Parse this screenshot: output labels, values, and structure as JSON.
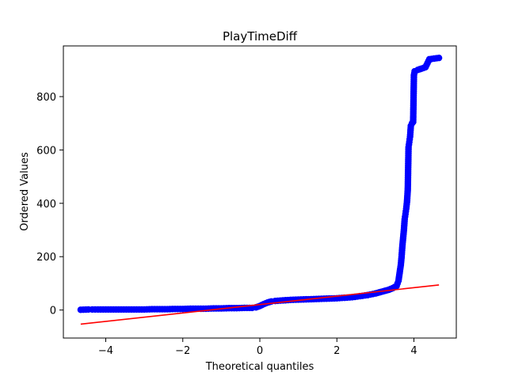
{
  "chart_data": {
    "type": "scatter",
    "title": "PlayTimeDiff",
    "xlabel": "Theoretical quantiles",
    "ylabel": "Ordered Values",
    "xlim": [
      -5.1,
      5.1
    ],
    "ylim": [
      -105,
      990
    ],
    "xticks": [
      -4,
      -2,
      0,
      2,
      4
    ],
    "yticks": [
      0,
      200,
      400,
      600,
      800
    ],
    "grid": false,
    "legend": "none",
    "point_color": "#0000ff",
    "line_color": "#ff0000",
    "series": [
      {
        "kind": "points",
        "x": [
          -4.65,
          -4.45,
          -4.35,
          -4.2,
          -4.0,
          -3.8,
          -3.6,
          -3.4,
          -3.2,
          -3.0,
          -2.8,
          -2.6,
          -2.4,
          -2.2,
          -2.0,
          -1.8,
          -1.6,
          -1.4,
          -1.2,
          -1.0,
          -0.8,
          -0.6,
          -0.4,
          -0.2,
          -0.1,
          0.0,
          0.1,
          0.2,
          0.3,
          0.4,
          0.6,
          0.8,
          1.0,
          1.2,
          1.4,
          1.6,
          1.8,
          2.0,
          2.2,
          2.4,
          2.6,
          2.8,
          3.0,
          3.2,
          3.35,
          3.45,
          3.55,
          3.6,
          3.63,
          3.66,
          3.68,
          3.7,
          3.72,
          3.74,
          3.76,
          3.78,
          3.8,
          3.82,
          3.84,
          3.86,
          3.88,
          3.9,
          3.92,
          3.95,
          3.98,
          4.0,
          4.02,
          4.1,
          4.2,
          4.3,
          4.4,
          4.65
        ],
        "y": [
          1,
          2,
          2,
          2,
          2,
          2,
          2,
          2,
          2,
          2,
          3,
          3,
          3,
          4,
          4,
          5,
          5,
          5,
          6,
          6,
          7,
          7,
          8,
          8,
          10,
          15,
          22,
          28,
          32,
          34,
          36,
          38,
          39,
          40,
          41,
          42,
          43,
          44,
          46,
          48,
          52,
          56,
          62,
          70,
          76,
          82,
          90,
          110,
          140,
          170,
          200,
          240,
          270,
          300,
          340,
          360,
          380,
          405,
          450,
          610,
          630,
          650,
          690,
          700,
          705,
          880,
          895,
          900,
          905,
          910,
          940,
          945
        ]
      },
      {
        "kind": "fit-line",
        "x": [
          -4.65,
          4.65
        ],
        "y": [
          -53,
          94
        ]
      }
    ]
  }
}
